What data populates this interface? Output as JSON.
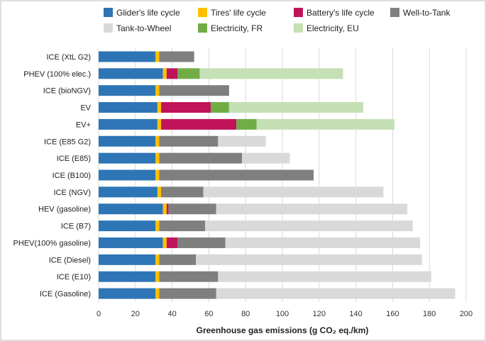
{
  "chart_data": {
    "type": "bar",
    "orientation": "horizontal",
    "stacked": true,
    "title": "",
    "xlabel": "Greenhouse gas emissions (g CO₂ eq./km)",
    "ylabel": "",
    "xlim": [
      0,
      200
    ],
    "xticks": [
      0,
      20,
      40,
      60,
      80,
      100,
      120,
      140,
      160,
      180,
      200
    ],
    "grid": true,
    "legend_position": "top",
    "categories": [
      "ICE (XtL G2)",
      "PHEV (100% elec.)",
      "ICE (bioNGV)",
      "EV",
      "EV+",
      "ICE (E85 G2)",
      "ICE (E85)",
      "ICE (B100)",
      "ICE (NGV)",
      "HEV (gasoline)",
      "ICE (B7)",
      "PHEV(100% gasoline)",
      "ICE (Diesel)",
      "ICE (E10)",
      "ICE (Gasoline)"
    ],
    "series": [
      {
        "name": "Glider's life cycle",
        "color": "#2e75b6",
        "values": [
          31,
          35,
          31,
          32,
          32,
          31,
          31,
          31,
          32,
          35,
          31,
          35,
          31,
          31,
          31
        ]
      },
      {
        "name": "Tires' life cycle",
        "color": "#ffc000",
        "values": [
          2,
          2,
          2,
          2,
          2,
          2,
          2,
          2,
          2,
          2,
          2,
          2,
          2,
          2,
          2
        ]
      },
      {
        "name": "Battery's life cycle",
        "color": "#c0145a",
        "values": [
          0,
          6,
          0,
          27,
          41,
          0,
          0,
          0,
          0,
          1,
          0,
          6,
          0,
          0,
          0
        ]
      },
      {
        "name": "Well-to-Tank",
        "color": "#7f7f7f",
        "values": [
          19,
          0,
          38,
          0,
          0,
          32,
          45,
          84,
          23,
          26,
          25,
          26,
          20,
          32,
          31
        ]
      },
      {
        "name": "Tank-to-Wheel",
        "color": "#d9d9d9",
        "values": [
          0,
          0,
          0,
          0,
          0,
          26,
          26,
          0,
          98,
          104,
          113,
          106,
          123,
          116,
          130
        ]
      },
      {
        "name": "Electricity, FR",
        "color": "#70ad47",
        "values": [
          0,
          12,
          0,
          10,
          11,
          0,
          0,
          0,
          0,
          0,
          0,
          0,
          0,
          0,
          0
        ]
      },
      {
        "name": "Electricity, EU",
        "color": "#c5e0b4",
        "values": [
          0,
          78,
          0,
          73,
          75,
          0,
          0,
          0,
          0,
          0,
          0,
          0,
          0,
          0,
          0
        ]
      }
    ]
  }
}
